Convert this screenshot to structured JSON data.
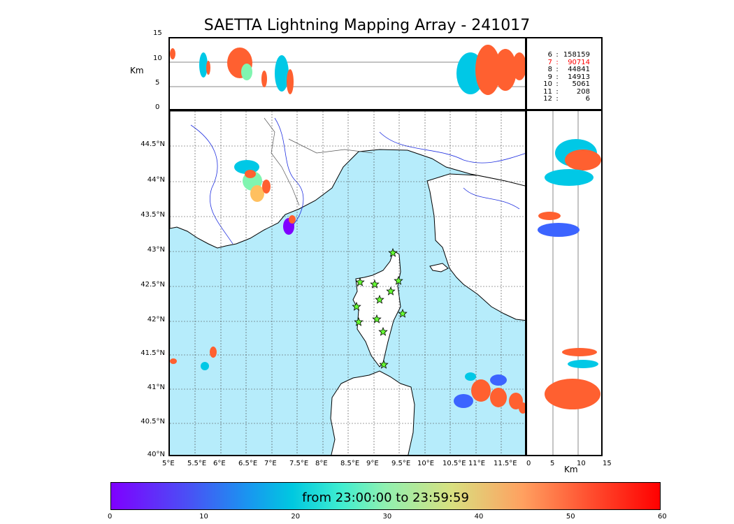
{
  "title": "SAETTA Lightning Mapping Array - 241017",
  "top_panel": {
    "ylabel": "Km",
    "yticks": [
      "15",
      "10",
      "5",
      "0"
    ]
  },
  "side_panel": {
    "xlabel": "Km",
    "xticks": [
      "0",
      "5",
      "10",
      "15"
    ]
  },
  "map": {
    "lat_ticks": [
      "44.5°N",
      "44°N",
      "43.5°N",
      "43°N",
      "42.5°N",
      "42°N",
      "41.5°N",
      "41°N",
      "40.5°N",
      "40°N"
    ],
    "lon_ticks": [
      "5°E",
      "5.5°E",
      "6°E",
      "6.5°E",
      "7°E",
      "7.5°E",
      "8°E",
      "8.5°E",
      "9°E",
      "9.5°E",
      "10°E",
      "10.5°E",
      "11°E",
      "11.5°E"
    ],
    "sea_color": "#b6ecfb",
    "station_color": "#66ff33"
  },
  "station_counts": [
    {
      "n": "6",
      "sep": ":",
      "count": "158159",
      "color": "#000000"
    },
    {
      "n": "7",
      "sep": ":",
      "count": "90714",
      "color": "#ff0000"
    },
    {
      "n": "8",
      "sep": ":",
      "count": "44841",
      "color": "#000000"
    },
    {
      "n": "9",
      "sep": ":",
      "count": "14913",
      "color": "#000000"
    },
    {
      "n": "10",
      "sep": ":",
      "count": "5061",
      "color": "#000000"
    },
    {
      "n": "11",
      "sep": ":",
      "count": "208",
      "color": "#000000"
    },
    {
      "n": "12",
      "sep": ":",
      "count": "6",
      "color": "#000000"
    }
  ],
  "colorbar": {
    "label": "from 23:00:00 to 23:59:59",
    "ticks": [
      "0",
      "10",
      "20",
      "30",
      "40",
      "50",
      "60"
    ],
    "range": [
      0,
      60
    ]
  }
}
